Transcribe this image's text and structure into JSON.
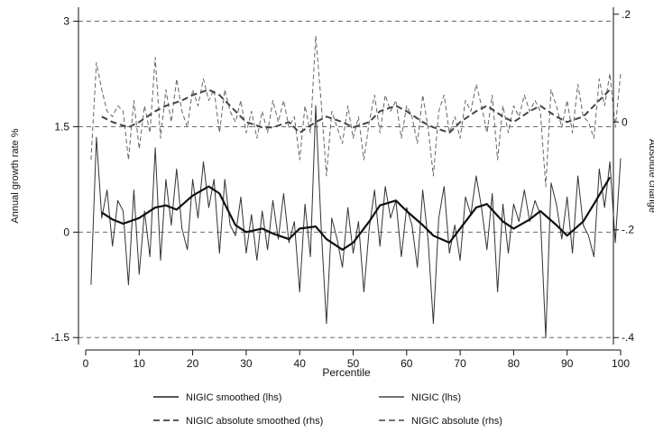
{
  "chart_data": {
    "type": "line",
    "title": "",
    "xlabel": "Percentile",
    "ylabel_left": "Annual growth rate %",
    "ylabel_right": "Absolute change",
    "xlim": [
      0,
      100
    ],
    "ylim_left": [
      -1.6,
      3.2
    ],
    "ylim_right": [
      -0.413,
      0.213
    ],
    "x_ticks": [
      0,
      10,
      20,
      30,
      40,
      50,
      60,
      70,
      80,
      90,
      100
    ],
    "x_tick_labels": [
      "0",
      "10",
      "20",
      "30",
      "40",
      "50",
      "60",
      "70",
      "80",
      "90",
      "100"
    ],
    "y_ticks_left": [
      3,
      1.5,
      0,
      -1.5
    ],
    "y_tick_labels_left": [
      "3",
      "1.5",
      "0",
      "-1.5"
    ],
    "y_ticks_right": [
      0.2,
      0,
      -0.2,
      -0.4
    ],
    "y_tick_labels_right": [
      ".2",
      "0",
      "-.2",
      "-.4"
    ],
    "grid": "dashed horizontal lines at left-axis ticks",
    "legend_position": "bottom",
    "series": [
      {
        "name": "NIGIC smoothed (lhs)",
        "axis": "left",
        "style": "solid-thick",
        "color": "#111111",
        "x": [
          3,
          5,
          7,
          10,
          13,
          15,
          17,
          20,
          23,
          25,
          28,
          30,
          33,
          35,
          38,
          40,
          43,
          45,
          48,
          50,
          53,
          55,
          58,
          60,
          63,
          65,
          68,
          70,
          73,
          75,
          78,
          80,
          83,
          85,
          88,
          90,
          93,
          95,
          98
        ],
        "values": [
          0.28,
          0.18,
          0.12,
          0.2,
          0.35,
          0.38,
          0.32,
          0.52,
          0.65,
          0.55,
          0.1,
          0.0,
          0.05,
          -0.02,
          -0.1,
          0.05,
          0.08,
          -0.1,
          -0.25,
          -0.15,
          0.15,
          0.38,
          0.45,
          0.3,
          0.1,
          -0.05,
          -0.15,
          0.05,
          0.35,
          0.4,
          0.15,
          0.05,
          0.18,
          0.3,
          0.1,
          -0.05,
          0.15,
          0.4,
          0.78
        ]
      },
      {
        "name": "NIGIC (lhs)",
        "axis": "left",
        "style": "solid-thin",
        "color": "#333333",
        "x": [
          1,
          2,
          3,
          4,
          5,
          6,
          7,
          8,
          9,
          10,
          11,
          12,
          13,
          14,
          15,
          16,
          17,
          18,
          19,
          20,
          21,
          22,
          23,
          24,
          25,
          26,
          27,
          28,
          29,
          30,
          31,
          32,
          33,
          34,
          35,
          36,
          37,
          38,
          39,
          40,
          41,
          42,
          43,
          44,
          45,
          46,
          47,
          48,
          49,
          50,
          51,
          52,
          53,
          54,
          55,
          56,
          57,
          58,
          59,
          60,
          61,
          62,
          63,
          64,
          65,
          66,
          67,
          68,
          69,
          70,
          71,
          72,
          73,
          74,
          75,
          76,
          77,
          78,
          79,
          80,
          81,
          82,
          83,
          84,
          85,
          86,
          87,
          88,
          89,
          90,
          91,
          92,
          93,
          94,
          95,
          96,
          97,
          98,
          99,
          100
        ],
        "values": [
          -0.75,
          1.35,
          0.2,
          0.6,
          -0.2,
          0.45,
          0.3,
          -0.75,
          0.6,
          -0.6,
          0.3,
          -0.35,
          1.2,
          -0.4,
          0.75,
          0.1,
          0.9,
          0.05,
          -0.25,
          0.75,
          0.2,
          1.0,
          0.35,
          0.75,
          -0.3,
          0.75,
          0.1,
          -0.05,
          0.5,
          -0.3,
          0.25,
          -0.4,
          0.3,
          -0.25,
          0.45,
          -0.1,
          0.55,
          -0.15,
          0.15,
          -0.85,
          0.4,
          -0.35,
          1.8,
          0.1,
          -1.3,
          0.2,
          -0.1,
          -0.5,
          0.35,
          -0.3,
          0.15,
          -0.85,
          0.05,
          0.6,
          -0.2,
          0.65,
          0.2,
          0.45,
          -0.35,
          0.35,
          0.1,
          -0.5,
          0.6,
          -0.1,
          -1.3,
          0.2,
          0.65,
          -0.3,
          0.1,
          -0.4,
          0.5,
          0.25,
          0.8,
          0.35,
          -0.25,
          0.55,
          -0.85,
          0.4,
          -0.3,
          0.4,
          0.15,
          0.6,
          0.15,
          0.45,
          0.25,
          -1.5,
          0.7,
          0.4,
          -0.1,
          0.5,
          -0.3,
          0.8,
          0.1,
          -0.05,
          -0.35,
          0.9,
          0.35,
          1.0,
          -0.15,
          1.05
        ]
      },
      {
        "name": "NIGIC absolute smoothed (rhs)",
        "axis": "right",
        "style": "dashed-thick",
        "color": "#444444",
        "x": [
          3,
          5,
          8,
          10,
          13,
          15,
          18,
          20,
          23,
          25,
          28,
          30,
          33,
          35,
          38,
          40,
          43,
          45,
          48,
          50,
          53,
          55,
          58,
          60,
          63,
          65,
          68,
          70,
          73,
          75,
          78,
          80,
          83,
          85,
          88,
          90,
          93,
          95,
          98
        ],
        "values": [
          0.01,
          0.0,
          -0.01,
          0.0,
          0.02,
          0.03,
          0.04,
          0.05,
          0.06,
          0.05,
          0.02,
          0.0,
          -0.01,
          -0.01,
          0.0,
          -0.02,
          0.0,
          0.01,
          0.0,
          -0.01,
          0.0,
          0.02,
          0.03,
          0.02,
          0.0,
          -0.01,
          -0.02,
          0.0,
          0.02,
          0.03,
          0.01,
          0.0,
          0.02,
          0.03,
          0.01,
          0.0,
          0.01,
          0.03,
          0.06
        ]
      },
      {
        "name": "NIGIC absolute (rhs)",
        "axis": "right",
        "style": "dashed-thin",
        "color": "#666666",
        "x": [
          1,
          2,
          3,
          4,
          5,
          6,
          7,
          8,
          9,
          10,
          11,
          12,
          13,
          14,
          15,
          16,
          17,
          18,
          19,
          20,
          21,
          22,
          23,
          24,
          25,
          26,
          27,
          28,
          29,
          30,
          31,
          32,
          33,
          34,
          35,
          36,
          37,
          38,
          39,
          40,
          41,
          42,
          43,
          44,
          45,
          46,
          47,
          48,
          49,
          50,
          51,
          52,
          53,
          54,
          55,
          56,
          57,
          58,
          59,
          60,
          61,
          62,
          63,
          64,
          65,
          66,
          67,
          68,
          69,
          70,
          71,
          72,
          73,
          74,
          75,
          76,
          77,
          78,
          79,
          80,
          81,
          82,
          83,
          84,
          85,
          86,
          87,
          88,
          89,
          90,
          91,
          92,
          93,
          94,
          95,
          96,
          97,
          98,
          99,
          100
        ],
        "values": [
          -0.07,
          0.11,
          0.06,
          0.02,
          0.01,
          0.03,
          0.02,
          -0.07,
          0.04,
          -0.05,
          0.03,
          -0.02,
          0.12,
          -0.03,
          0.06,
          0.0,
          0.08,
          0.02,
          -0.01,
          0.06,
          0.03,
          0.08,
          0.04,
          0.06,
          -0.02,
          0.06,
          0.02,
          0.0,
          0.04,
          -0.02,
          0.02,
          -0.03,
          0.02,
          -0.02,
          0.04,
          0.0,
          0.04,
          -0.01,
          0.01,
          -0.07,
          0.03,
          -0.02,
          0.16,
          0.04,
          -0.1,
          0.02,
          -0.01,
          -0.04,
          0.03,
          -0.03,
          0.01,
          -0.07,
          0.0,
          0.05,
          -0.02,
          0.05,
          0.02,
          0.04,
          -0.03,
          0.03,
          0.01,
          -0.04,
          0.05,
          -0.01,
          -0.1,
          0.02,
          0.05,
          -0.02,
          0.01,
          -0.03,
          0.04,
          0.02,
          0.07,
          0.03,
          -0.02,
          0.05,
          -0.07,
          0.03,
          -0.02,
          0.03,
          0.01,
          0.05,
          0.02,
          0.04,
          0.02,
          -0.12,
          0.06,
          0.03,
          -0.01,
          0.04,
          -0.02,
          0.07,
          0.01,
          0.0,
          -0.03,
          0.08,
          0.03,
          0.09,
          -0.01,
          0.09
        ]
      }
    ]
  }
}
